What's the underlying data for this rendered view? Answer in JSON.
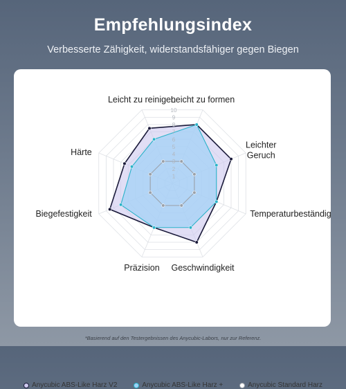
{
  "header": {
    "title": "Empfehlungsindex",
    "subtitle": "Verbesserte Zähigkeit, widerstandsfähiger gegen Biegen"
  },
  "chart_data": {
    "type": "radar",
    "categories": [
      "Leicht zu formen",
      "Leichter Geruch",
      "Temperaturbeständigkeit",
      "Geschwindigkeit",
      "Präzision",
      "Biegefestigkeit",
      "Härte",
      "Leicht zu reinigen"
    ],
    "rlim": [
      0,
      10
    ],
    "ticks": [
      "1",
      "2",
      "3",
      "4",
      "5",
      "6",
      "7",
      "8",
      "9",
      "10"
    ],
    "series": [
      {
        "name": "Anycubic ABS-Like Harz V2",
        "values": [
          8,
          8,
          6,
          8,
          6,
          8.5,
          6.5,
          7.5
        ],
        "stroke": "#1a1a3a",
        "fill": "#cdc8ee",
        "fill_opacity": 0.6
      },
      {
        "name": "Anycubic ABS-Like Harz +",
        "values": [
          8,
          6,
          6,
          6,
          6,
          7,
          5.5,
          6
        ],
        "stroke": "#2ab3c9",
        "fill": "#9fd2f6",
        "fill_opacity": 0.7
      },
      {
        "name": "Anycubic Standard Harz",
        "values": [
          3,
          3,
          3,
          3,
          3,
          3,
          3,
          3
        ],
        "stroke": "#9aa0a8",
        "fill": "#ffffff",
        "fill_opacity": 0
      }
    ],
    "grid": true,
    "legend_position": "bottom"
  },
  "footnote": "*Basierend auf den Testergebnissen des Anycubic-Labors, nur zur Referenz."
}
